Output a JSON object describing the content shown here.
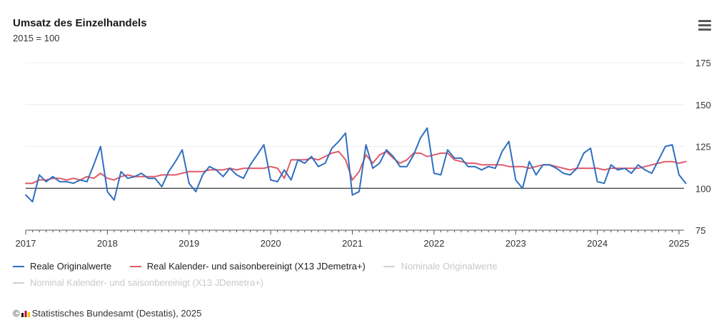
{
  "header": {
    "title": "Umsatz des Einzelhandels",
    "subtitle": "2015 = 100"
  },
  "footer": {
    "copyright_symbol": "©",
    "source": "Statistisches Bundesamt (Destatis), 2025"
  },
  "colors": {
    "blue": "#2f6fc0",
    "red": "#e25a6a",
    "grey": "#d0d0d0",
    "baseline": "#333333",
    "grid": "#ececec"
  },
  "chart_data": {
    "type": "line",
    "title": "Umsatz des Einzelhandels",
    "subtitle": "2015 = 100",
    "x_start": "2017-01",
    "x_ticks": [
      "2017",
      "2018",
      "2019",
      "2020",
      "2021",
      "2022",
      "2023",
      "2024",
      "2025"
    ],
    "y_ticks": [
      75,
      100,
      125,
      150,
      175
    ],
    "ylim": [
      75,
      175
    ],
    "reference_line": 100,
    "grid": true,
    "legend_position": "bottom",
    "series": [
      {
        "name": "Reale Originalwerte",
        "color": "#2f6fc0",
        "visible": true,
        "values": [
          96,
          92,
          108,
          104,
          107,
          104,
          104,
          103,
          105,
          104,
          114,
          125,
          98,
          93,
          110,
          106,
          107,
          109,
          106,
          106,
          101,
          110,
          116,
          123,
          103,
          98,
          108,
          113,
          111,
          107,
          112,
          108,
          106,
          114,
          120,
          126,
          105,
          104,
          111,
          105,
          117,
          115,
          119,
          113,
          115,
          124,
          128,
          133,
          96,
          98,
          126,
          112,
          115,
          123,
          119,
          113,
          113,
          120,
          130,
          136,
          109,
          108,
          123,
          118,
          118,
          113,
          113,
          111,
          113,
          112,
          122,
          128,
          105,
          100,
          116,
          108,
          114,
          114,
          112,
          109,
          108,
          112,
          121,
          124,
          104,
          103,
          114,
          111,
          112,
          109,
          114,
          111,
          109,
          117,
          125,
          126,
          108,
          103
        ],
        "note": "monthly values from Jan 2017"
      },
      {
        "name": "Real Kalender- und saisonbereinigt (X13 JDemetra+)",
        "color": "#e25a6a",
        "visible": true,
        "values": [
          103,
          103,
          105,
          105,
          106,
          106,
          105,
          106,
          105,
          107,
          106,
          109,
          106,
          105,
          107,
          108,
          107,
          107,
          107,
          107,
          108,
          108,
          108,
          109,
          110,
          110,
          110,
          111,
          111,
          111,
          112,
          111,
          112,
          112,
          112,
          112,
          113,
          112,
          106,
          117,
          117,
          117,
          118,
          117,
          119,
          121,
          122,
          117,
          105,
          110,
          120,
          115,
          120,
          122,
          118,
          115,
          117,
          121,
          121,
          119,
          120,
          121,
          121,
          117,
          116,
          115,
          115,
          114,
          114,
          114,
          114,
          113,
          113,
          113,
          112,
          113,
          114,
          114,
          113,
          112,
          111,
          112,
          112,
          112,
          112,
          111,
          112,
          112,
          112,
          112,
          112,
          113,
          114,
          115,
          116,
          116,
          115,
          116
        ]
      },
      {
        "name": "Nominale Originalwerte",
        "color": "#d0d0d0",
        "visible": false
      },
      {
        "name": "Nominal Kalender- und saisonbereinigt (X13 JDemetra+)",
        "color": "#d0d0d0",
        "visible": false
      }
    ]
  }
}
